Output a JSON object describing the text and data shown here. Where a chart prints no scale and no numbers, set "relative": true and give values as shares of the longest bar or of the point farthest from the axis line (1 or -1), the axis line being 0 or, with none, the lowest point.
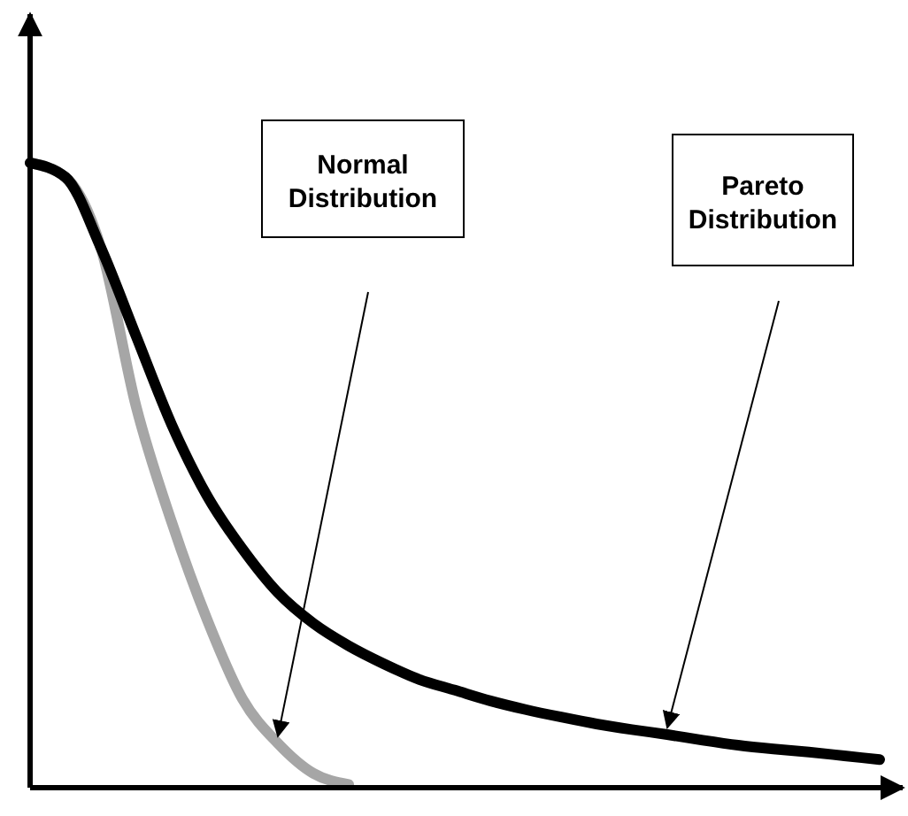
{
  "chart_data": {
    "type": "line",
    "relative": true,
    "marker": "none",
    "annotations": [
      "Normal Distribution",
      "Pareto Distribution"
    ],
    "categories": [
      null,
      null,
      null,
      null,
      null,
      null,
      null,
      null,
      null,
      null,
      null,
      null,
      null,
      null,
      null,
      null,
      null,
      null,
      null,
      null,
      null,
      null,
      null,
      null,
      null
    ],
    "series": [
      {
        "color": "#a6a6a6",
        "values": [
          1,
          0.977,
          0.864,
          0.609,
          0.425,
          0.269,
          0.142,
          0.071,
          0.023,
          0.005,
          null,
          null,
          null,
          null,
          null,
          null,
          null,
          null,
          null,
          null,
          null,
          null,
          null,
          null,
          null
        ]
      },
      {
        "color": "#000000",
        "values": [
          1,
          0.977,
          0.864,
          0.722,
          0.581,
          0.467,
          0.382,
          0.312,
          0.263,
          0.227,
          0.198,
          0.173,
          0.156,
          0.139,
          0.125,
          0.113,
          0.102,
          0.093,
          0.085,
          0.076,
          0.068,
          0.062,
          0.057,
          0.051,
          0.045
        ]
      }
    ]
  }
}
